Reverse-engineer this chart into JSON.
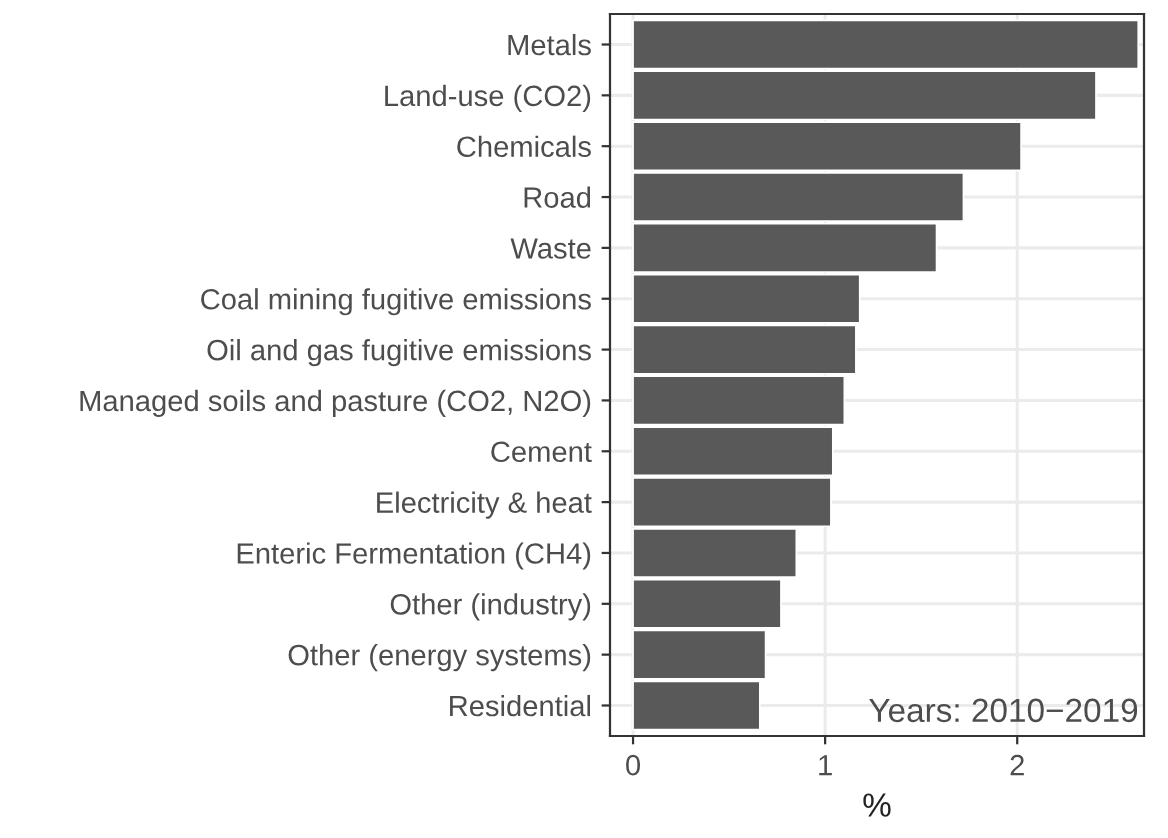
{
  "chart_data": {
    "type": "bar",
    "orientation": "horizontal",
    "xlabel": "%",
    "categories": [
      "Metals",
      "Land-use (CO2)",
      "Chemicals",
      "Road",
      "Waste",
      "Coal mining fugitive emissions",
      "Oil and gas fugitive emissions",
      "Managed soils and pasture (CO2, N2O)",
      "Cement",
      "Electricity & heat",
      "Enteric Fermentation (CH4)",
      "Other (industry)",
      "Other (energy systems)",
      "Residential"
    ],
    "values": [
      2.63,
      2.41,
      2.02,
      1.72,
      1.58,
      1.18,
      1.16,
      1.1,
      1.04,
      1.03,
      0.85,
      0.77,
      0.69,
      0.66
    ],
    "color": "#595959",
    "xlim": [
      -0.12,
      2.66
    ],
    "xticks": [
      0,
      1,
      2
    ],
    "grid": true,
    "annotations": [
      "Years: 2010−2019"
    ]
  }
}
